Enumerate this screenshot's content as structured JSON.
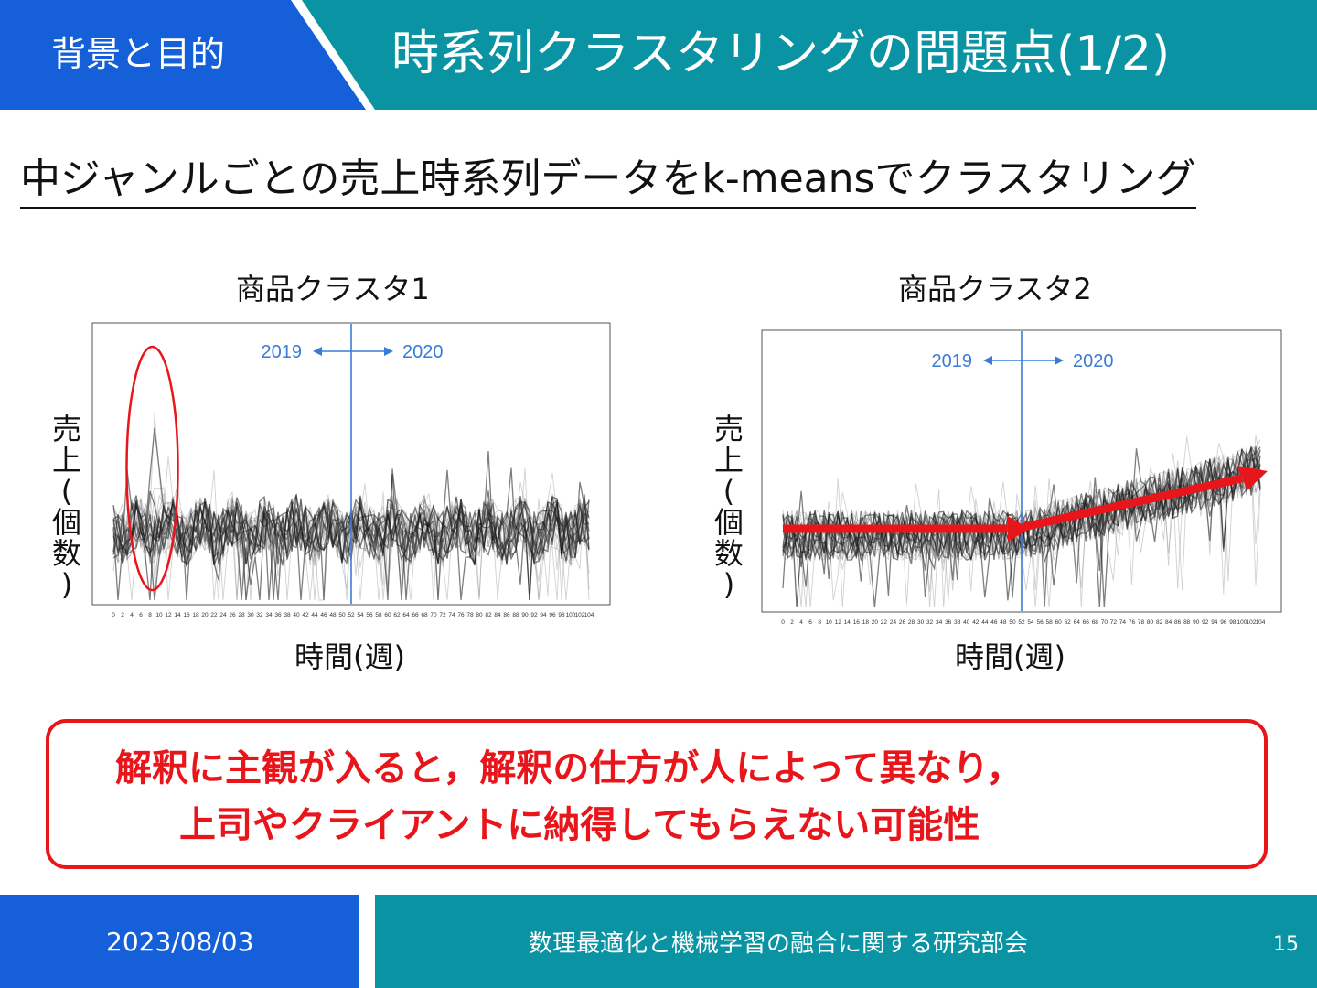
{
  "header": {
    "section_label": "背景と目的",
    "title": "時系列クラスタリングの問題点(1/2)"
  },
  "subtitle": "中ジャンルごとの売上時系列データをk-meansでクラスタリング",
  "colors": {
    "header_blue": "#1560d8",
    "header_teal": "#0a93a3",
    "accent_red": "#e8161b",
    "divider_blue": "#3a7bd5"
  },
  "chart_data": [
    {
      "type": "line",
      "title": "商品クラスタ1",
      "xlabel": "時間(週)",
      "ylabel": "売上(個数)",
      "x_tick_labels": [
        "0",
        "2",
        "4",
        "6",
        "8",
        "10",
        "12",
        "14",
        "16",
        "18",
        "20",
        "22",
        "24",
        "26",
        "28",
        "30",
        "32",
        "34",
        "36",
        "38",
        "40",
        "42",
        "44",
        "46",
        "48",
        "50",
        "52",
        "54",
        "56",
        "58",
        "60",
        "62",
        "64",
        "66",
        "68",
        "70",
        "72",
        "74",
        "76",
        "78",
        "80",
        "82",
        "84",
        "86",
        "88",
        "90",
        "92",
        "94",
        "96",
        "98",
        "100",
        "102",
        "104"
      ],
      "xlim": [
        0,
        104
      ],
      "divider_week": 52,
      "divider_labels": {
        "left": "2019",
        "right": "2020"
      },
      "annotation": "red ellipse highlighting spike around weeks 6-12",
      "trend": "flat with early spike",
      "series_count": 30
    },
    {
      "type": "line",
      "title": "商品クラスタ2",
      "xlabel": "時間(週)",
      "ylabel": "売上(個数)",
      "x_tick_labels": [
        "0",
        "2",
        "4",
        "6",
        "8",
        "10",
        "12",
        "14",
        "16",
        "18",
        "20",
        "22",
        "24",
        "26",
        "28",
        "30",
        "32",
        "34",
        "36",
        "38",
        "40",
        "42",
        "44",
        "46",
        "48",
        "50",
        "52",
        "54",
        "56",
        "58",
        "60",
        "62",
        "64",
        "66",
        "68",
        "70",
        "72",
        "74",
        "76",
        "78",
        "80",
        "82",
        "84",
        "86",
        "88",
        "90",
        "92",
        "94",
        "96",
        "98",
        "100",
        "102",
        "104"
      ],
      "xlim": [
        0,
        104
      ],
      "divider_week": 52,
      "divider_labels": {
        "left": "2019",
        "right": "2020"
      },
      "annotation": "red arrows: flat in 2019, rising in 2020",
      "trend": "flat then increasing",
      "series_count": 30
    }
  ],
  "callout": {
    "line1": "解釈に主観が入ると，解釈の仕方が人によって異なり，",
    "line2": "上司やクライアントに納得してもらえない可能性"
  },
  "footer": {
    "date": "2023/08/03",
    "organization": "数理最適化と機械学習の融合に関する研究部会",
    "page": "15"
  }
}
